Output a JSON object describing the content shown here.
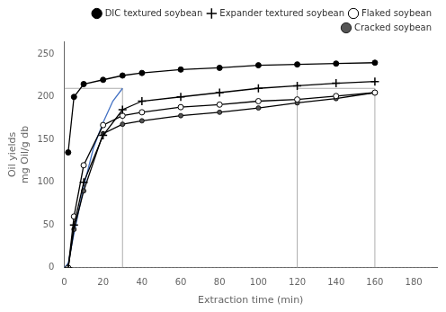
{
  "chart_data": {
    "type": "line",
    "xlabel": "Extraction time (min)",
    "ylabel": [
      "Oil yields",
      "mg Oil/g db"
    ],
    "xlim": [
      0,
      192
    ],
    "ylim": [
      0,
      265
    ],
    "xticks": [
      0,
      20,
      40,
      60,
      80,
      100,
      120,
      140,
      160,
      180
    ],
    "yticks": [
      0,
      50,
      100,
      150,
      200,
      250
    ],
    "grid": false,
    "legend": "upper right",
    "series": [
      {
        "name": "DIC textured soybean",
        "marker": "filled_circle",
        "color": "#000000",
        "x": [
          2,
          5,
          10,
          20,
          30,
          40,
          60,
          80,
          100,
          120,
          140,
          160
        ],
        "values": [
          135,
          200,
          215,
          220,
          225,
          228,
          232,
          234,
          237,
          238,
          239,
          240
        ]
      },
      {
        "name": "Expander textured soybean",
        "marker": "plus",
        "color": "#000000",
        "x": [
          2,
          5,
          10,
          20,
          30,
          40,
          60,
          80,
          100,
          120,
          140,
          160
        ],
        "values": [
          0,
          50,
          100,
          155,
          185,
          195,
          200,
          205,
          210,
          213,
          216,
          218
        ]
      },
      {
        "name": "Flaked soybean",
        "marker": "open_circle",
        "color": "#000000",
        "x": [
          2,
          5,
          10,
          20,
          30,
          40,
          60,
          80,
          100,
          120,
          140,
          160
        ],
        "values": [
          0,
          60,
          120,
          167,
          178,
          182,
          188,
          191,
          195,
          197,
          201,
          205
        ]
      },
      {
        "name": "Cracked soybean",
        "marker": "half_circle",
        "color": "#000000",
        "x": [
          2,
          5,
          10,
          20,
          30,
          40,
          60,
          80,
          100,
          120,
          140,
          160
        ],
        "values": [
          0,
          45,
          90,
          157,
          168,
          172,
          178,
          182,
          187,
          193,
          198,
          205
        ]
      },
      {
        "color": "#4472c4",
        "x": [
          0,
          2,
          5,
          10,
          15,
          20,
          25,
          30
        ],
        "values": [
          0,
          5,
          40,
          95,
          140,
          170,
          195,
          210
        ]
      },
      {
        "color": "#999999",
        "line_style": "dotted",
        "x": [
          1,
          190
        ],
        "values": [
          0,
          0
        ]
      },
      {
        "color": "#999999",
        "x": [
          30,
          30
        ],
        "values": [
          0,
          210
        ]
      },
      {
        "color": "#999999",
        "x": [
          120,
          120
        ],
        "values": [
          0,
          210
        ]
      },
      {
        "color": "#999999",
        "x": [
          160,
          160
        ],
        "values": [
          0,
          210
        ]
      },
      {
        "color": "#999999",
        "x": [
          0,
          30
        ],
        "values": [
          210,
          210
        ]
      },
      {
        "color": "#999999",
        "x": [
          120,
          160
        ],
        "values": [
          210,
          210
        ]
      }
    ]
  }
}
